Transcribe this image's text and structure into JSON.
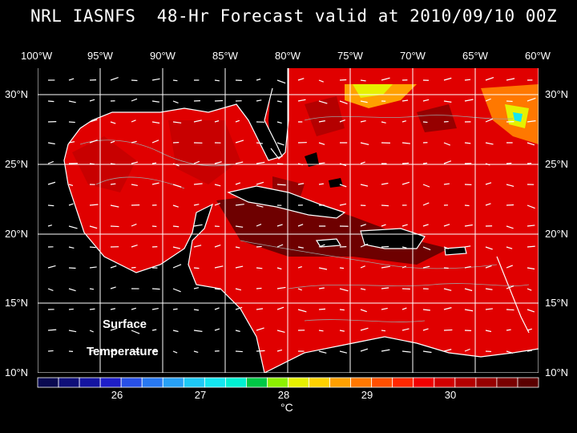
{
  "title": "NRL IASNFS  48-Hr Forecast valid at 2010/09/10 00Z",
  "longitude_labels": [
    "100°W",
    "95°W",
    "90°W",
    "85°W",
    "80°W",
    "75°W",
    "70°W",
    "65°W",
    "60°W"
  ],
  "latitude_labels": [
    "30°N",
    "25°N",
    "20°N",
    "15°N",
    "10°N"
  ],
  "overlay": {
    "line1": "Surface",
    "line2": "Temperature"
  },
  "colorbar": {
    "labels": [
      "26",
      "27",
      "28",
      "29",
      "30"
    ],
    "unit": "°C",
    "colors": [
      "#0a0a50",
      "#0f0f78",
      "#1414a0",
      "#1e1ec8",
      "#2850e6",
      "#2878f0",
      "#28a0f5",
      "#1ec8f5",
      "#14e6f0",
      "#00f0d2",
      "#00c846",
      "#8cf000",
      "#e6f000",
      "#ffd200",
      "#ffa000",
      "#ff7800",
      "#ff5000",
      "#ff2800",
      "#f00000",
      "#d20000",
      "#b40000",
      "#960000",
      "#780000",
      "#5a0000"
    ]
  },
  "map_colors": {
    "ocean_warm": "#e00000",
    "ocean_mid": "#c80000",
    "ocean_dark": "#6e0000",
    "ocean_orange": "#ff5a00",
    "land": "#000000",
    "coast": "#ffffff",
    "grid": "#ffffff",
    "contour": "#a0a0a0"
  }
}
